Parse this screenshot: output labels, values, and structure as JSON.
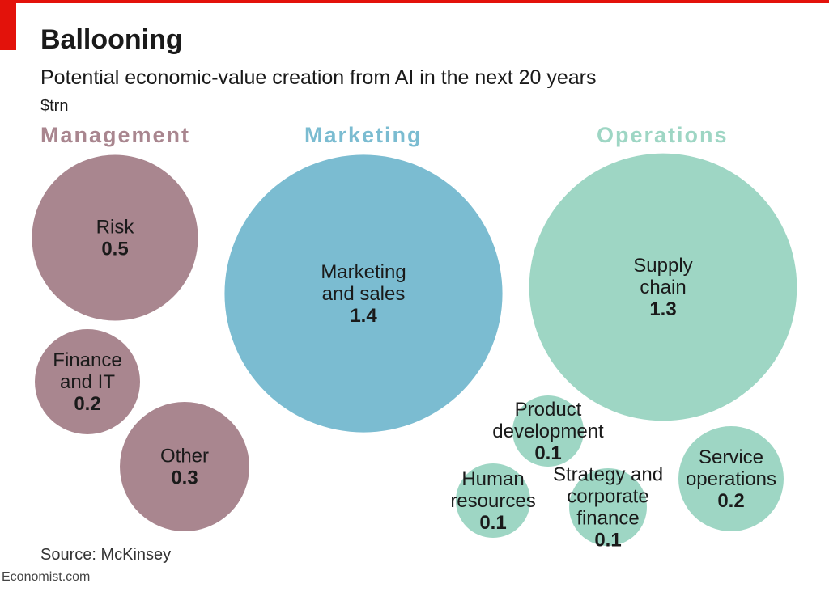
{
  "header": {
    "title": "Ballooning",
    "subtitle": "Potential economic-value creation from AI in the next 20 years",
    "unit": "$trn"
  },
  "footer": {
    "source": "Source: McKinsey",
    "brand": "Economist.com"
  },
  "colors": {
    "accent": "#e3120b",
    "management": "#a9868f",
    "marketing": "#7bbcd1",
    "operations": "#9ed6c4"
  },
  "chart_data": {
    "type": "bubble",
    "title": "Ballooning",
    "subtitle": "Potential economic-value creation from AI in the next 20 years",
    "unit": "$trn",
    "groups": [
      {
        "name": "Management",
        "items": [
          {
            "label": "Risk",
            "value": 0.5
          },
          {
            "label": "Finance and IT",
            "value": 0.2
          },
          {
            "label": "Other",
            "value": 0.3
          }
        ]
      },
      {
        "name": "Marketing",
        "items": [
          {
            "label": "Marketing and sales",
            "value": 1.4
          }
        ]
      },
      {
        "name": "Operations",
        "items": [
          {
            "label": "Supply chain",
            "value": 1.3
          },
          {
            "label": "Product development",
            "value": 0.1
          },
          {
            "label": "Human resources",
            "value": 0.1
          },
          {
            "label": "Strategy and corporate finance",
            "value": 0.1
          },
          {
            "label": "Service operations",
            "value": 0.2
          }
        ]
      }
    ],
    "source": "Source: McKinsey"
  }
}
